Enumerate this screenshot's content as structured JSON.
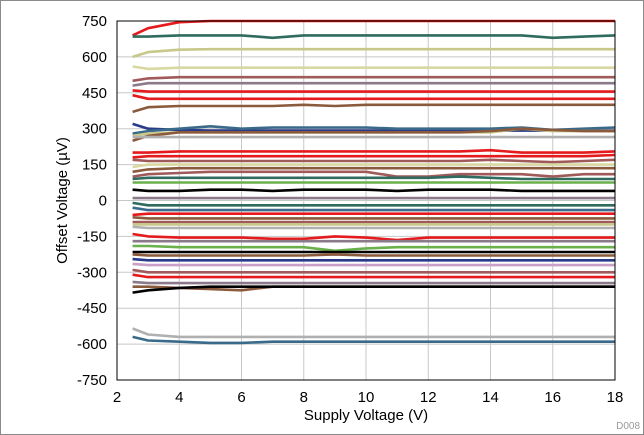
{
  "chart_data": {
    "type": "line",
    "title": "",
    "xlabel": "Supply Voltage (V)",
    "ylabel": "Offset Voltage (µV)",
    "figure_code": "D008",
    "xlim": [
      2,
      18
    ],
    "ylim": [
      -750,
      750
    ],
    "x_ticks": [
      "2",
      "4",
      "6",
      "8",
      "10",
      "12",
      "14",
      "16",
      "18"
    ],
    "y_ticks": [
      "750",
      "600",
      "450",
      "300",
      "150",
      "0",
      "-150",
      "-300",
      "-450",
      "-600",
      "-750"
    ],
    "grid": true,
    "legend": "none",
    "x": [
      2.5,
      3,
      4,
      5,
      6,
      7,
      8,
      9,
      10,
      11,
      12,
      13,
      14,
      15,
      16,
      17,
      18
    ],
    "series": [
      {
        "color": "#e41a1c",
        "values": [
          690,
          720,
          745,
          750,
          750,
          750,
          750,
          750,
          750,
          750,
          750,
          750,
          750,
          750,
          750,
          750,
          750
        ]
      },
      {
        "color": "#2f6b5e",
        "values": [
          685,
          685,
          690,
          690,
          690,
          680,
          690,
          690,
          690,
          690,
          690,
          690,
          690,
          690,
          680,
          685,
          690
        ]
      },
      {
        "color": "#c8c88a",
        "values": [
          600,
          620,
          630,
          632,
          632,
          632,
          632,
          632,
          632,
          632,
          632,
          632,
          632,
          632,
          632,
          632,
          632
        ]
      },
      {
        "color": "#d8d8a0",
        "values": [
          560,
          550,
          555,
          555,
          555,
          555,
          555,
          555,
          555,
          555,
          555,
          555,
          555,
          555,
          555,
          555,
          555
        ]
      },
      {
        "color": "#a05a5a",
        "values": [
          500,
          510,
          515,
          515,
          515,
          515,
          515,
          515,
          515,
          515,
          515,
          515,
          515,
          515,
          515,
          515,
          515
        ]
      },
      {
        "color": "#8a7a8a",
        "values": [
          480,
          490,
          490,
          490,
          490,
          490,
          490,
          490,
          490,
          490,
          490,
          490,
          490,
          490,
          490,
          490,
          490
        ]
      },
      {
        "color": "#e41a1c",
        "values": [
          460,
          455,
          455,
          455,
          455,
          455,
          455,
          455,
          455,
          455,
          455,
          455,
          455,
          455,
          455,
          455,
          455
        ]
      },
      {
        "color": "#e41a1c",
        "values": [
          440,
          425,
          425,
          425,
          425,
          425,
          425,
          425,
          425,
          425,
          425,
          425,
          425,
          425,
          425,
          425,
          425
        ]
      },
      {
        "color": "#8b5a3c",
        "values": [
          370,
          390,
          395,
          395,
          395,
          395,
          400,
          395,
          400,
          400,
          400,
          400,
          400,
          400,
          400,
          400,
          400
        ]
      },
      {
        "color": "#2a3a8a",
        "values": [
          320,
          300,
          295,
          292,
          292,
          292,
          292,
          292,
          292,
          292,
          292,
          292,
          292,
          292,
          292,
          292,
          292
        ]
      },
      {
        "color": "#3a6a8a",
        "values": [
          280,
          290,
          300,
          310,
          300,
          305,
          305,
          305,
          305,
          300,
          300,
          300,
          300,
          305,
          295,
          300,
          305
        ]
      },
      {
        "color": "#c8c88a",
        "values": [
          270,
          280,
          285,
          285,
          285,
          285,
          285,
          285,
          285,
          285,
          285,
          285,
          285,
          300,
          290,
          290,
          290
        ]
      },
      {
        "color": "#8b5a3c",
        "values": [
          250,
          270,
          285,
          285,
          285,
          285,
          285,
          285,
          285,
          285,
          285,
          285,
          290,
          300,
          295,
          290,
          290
        ]
      },
      {
        "color": "#b0b0b0",
        "values": [
          265,
          265,
          265,
          265,
          265,
          265,
          265,
          265,
          265,
          265,
          265,
          265,
          265,
          265,
          265,
          265,
          265
        ]
      },
      {
        "color": "#e41a1c",
        "values": [
          200,
          200,
          205,
          205,
          205,
          205,
          205,
          205,
          205,
          205,
          205,
          205,
          210,
          200,
          200,
          200,
          205
        ]
      },
      {
        "color": "#e41a1c",
        "values": [
          180,
          185,
          185,
          185,
          185,
          185,
          185,
          185,
          185,
          185,
          185,
          185,
          185,
          185,
          185,
          185,
          190
        ]
      },
      {
        "color": "#a05a5a",
        "values": [
          170,
          165,
          165,
          165,
          165,
          165,
          165,
          165,
          165,
          165,
          165,
          165,
          170,
          165,
          160,
          165,
          170
        ]
      },
      {
        "color": "#d8d8a0",
        "values": [
          140,
          150,
          150,
          150,
          150,
          150,
          150,
          150,
          150,
          150,
          150,
          150,
          150,
          150,
          150,
          150,
          150
        ]
      },
      {
        "color": "#8b5a3c",
        "values": [
          120,
          130,
          135,
          135,
          135,
          135,
          135,
          135,
          135,
          135,
          135,
          135,
          135,
          135,
          135,
          135,
          135
        ]
      },
      {
        "color": "#a05a5a",
        "values": [
          100,
          110,
          115,
          120,
          120,
          120,
          120,
          120,
          120,
          100,
          100,
          110,
          110,
          110,
          100,
          110,
          110
        ]
      },
      {
        "color": "#2f6b5e",
        "values": [
          90,
          95,
          95,
          95,
          95,
          95,
          95,
          95,
          95,
          95,
          95,
          100,
          95,
          90,
          90,
          90,
          90
        ]
      },
      {
        "color": "#6ab04c",
        "values": [
          75,
          75,
          75,
          75,
          75,
          75,
          75,
          75,
          75,
          75,
          75,
          75,
          75,
          75,
          75,
          75,
          75
        ]
      },
      {
        "color": "#000000",
        "values": [
          45,
          40,
          40,
          45,
          45,
          40,
          45,
          45,
          45,
          40,
          45,
          45,
          45,
          40,
          40,
          40,
          40
        ]
      },
      {
        "color": "#8a7a8a",
        "values": [
          10,
          10,
          10,
          10,
          10,
          10,
          10,
          10,
          10,
          10,
          10,
          10,
          10,
          10,
          10,
          10,
          10
        ]
      },
      {
        "color": "#2f6b5e",
        "values": [
          -10,
          -20,
          -20,
          -20,
          -20,
          -20,
          -20,
          -20,
          -20,
          -20,
          -20,
          -20,
          -20,
          -20,
          -20,
          -20,
          -20
        ]
      },
      {
        "color": "#3a6a8a",
        "values": [
          -30,
          -40,
          -40,
          -40,
          -40,
          -40,
          -40,
          -40,
          -40,
          -40,
          -40,
          -40,
          -40,
          -40,
          -40,
          -40,
          -40
        ]
      },
      {
        "color": "#e41a1c",
        "values": [
          -60,
          -55,
          -55,
          -55,
          -55,
          -55,
          -55,
          -55,
          -55,
          -55,
          -55,
          -55,
          -55,
          -55,
          -55,
          -55,
          -55
        ]
      },
      {
        "color": "#8b5a3c",
        "values": [
          -70,
          -75,
          -75,
          -75,
          -75,
          -75,
          -75,
          -75,
          -75,
          -75,
          -75,
          -75,
          -75,
          -75,
          -75,
          -75,
          -75
        ]
      },
      {
        "color": "#a05a5a",
        "values": [
          -90,
          -90,
          -90,
          -90,
          -90,
          -90,
          -90,
          -90,
          -90,
          -90,
          -90,
          -90,
          -90,
          -90,
          -90,
          -90,
          -90
        ]
      },
      {
        "color": "#c8c88a",
        "values": [
          -100,
          -100,
          -100,
          -100,
          -100,
          -100,
          -100,
          -100,
          -100,
          -100,
          -100,
          -100,
          -100,
          -100,
          -100,
          -100,
          -100
        ]
      },
      {
        "color": "#b0b0b0",
        "values": [
          -110,
          -115,
          -115,
          -115,
          -115,
          -115,
          -115,
          -115,
          -115,
          -115,
          -115,
          -115,
          -115,
          -115,
          -115,
          -115,
          -115
        ]
      },
      {
        "color": "#e41a1c",
        "values": [
          -140,
          -150,
          -155,
          -155,
          -155,
          -160,
          -160,
          -150,
          -155,
          -165,
          -155,
          -155,
          -155,
          -155,
          -155,
          -155,
          -155
        ]
      },
      {
        "color": "#8a7a8a",
        "values": [
          -170,
          -170,
          -170,
          -170,
          -170,
          -170,
          -170,
          -170,
          -170,
          -170,
          -170,
          -170,
          -170,
          -170,
          -170,
          -170,
          -170
        ]
      },
      {
        "color": "#6ab04c",
        "values": [
          -190,
          -190,
          -195,
          -195,
          -195,
          -195,
          -195,
          -210,
          -200,
          -195,
          -195,
          -195,
          -195,
          -195,
          -195,
          -195,
          -195
        ]
      },
      {
        "color": "#000000",
        "values": [
          -215,
          -215,
          -215,
          -215,
          -215,
          -215,
          -215,
          -215,
          -215,
          -215,
          -215,
          -215,
          -215,
          -215,
          -215,
          -215,
          -215
        ]
      },
      {
        "color": "#8b5a3c",
        "values": [
          -225,
          -230,
          -230,
          -230,
          -230,
          -230,
          -230,
          -225,
          -230,
          -230,
          -230,
          -230,
          -230,
          -230,
          -230,
          -230,
          -230
        ]
      },
      {
        "color": "#2a3a8a",
        "values": [
          -245,
          -250,
          -250,
          -250,
          -250,
          -250,
          -250,
          -250,
          -250,
          -250,
          -250,
          -250,
          -250,
          -250,
          -250,
          -250,
          -250
        ]
      },
      {
        "color": "#c8a0c8",
        "values": [
          -265,
          -270,
          -270,
          -270,
          -270,
          -270,
          -270,
          -270,
          -270,
          -270,
          -270,
          -270,
          -270,
          -270,
          -270,
          -270,
          -270
        ]
      },
      {
        "color": "#a05a5a",
        "values": [
          -290,
          -300,
          -300,
          -300,
          -300,
          -300,
          -300,
          -300,
          -300,
          -300,
          -300,
          -300,
          -300,
          -300,
          -300,
          -300,
          -300
        ]
      },
      {
        "color": "#e41a1c",
        "values": [
          -310,
          -320,
          -320,
          -320,
          -320,
          -320,
          -320,
          -320,
          -320,
          -320,
          -320,
          -320,
          -320,
          -320,
          -320,
          -320,
          -320
        ]
      },
      {
        "color": "#8a7a8a",
        "values": [
          -340,
          -345,
          -345,
          -345,
          -345,
          -345,
          -345,
          -345,
          -345,
          -345,
          -345,
          -345,
          -345,
          -345,
          -345,
          -345,
          -345
        ]
      },
      {
        "color": "#8b5a3c",
        "values": [
          -360,
          -360,
          -365,
          -370,
          -375,
          -360,
          -360,
          -360,
          -360,
          -360,
          -360,
          -360,
          -360,
          -360,
          -360,
          -360,
          -360
        ]
      },
      {
        "color": "#000000",
        "values": [
          -385,
          -375,
          -365,
          -360,
          -360,
          -360,
          -360,
          -360,
          -360,
          -360,
          -360,
          -360,
          -360,
          -360,
          -360,
          -360,
          -360
        ]
      },
      {
        "color": "#b0b0b0",
        "values": [
          -535,
          -560,
          -570,
          -570,
          -570,
          -570,
          -570,
          -570,
          -570,
          -570,
          -570,
          -570,
          -570,
          -570,
          -570,
          -570,
          -570
        ]
      },
      {
        "color": "#3a6a8a",
        "values": [
          -570,
          -585,
          -590,
          -595,
          -595,
          -590,
          -590,
          -590,
          -590,
          -590,
          -590,
          -590,
          -590,
          -590,
          -590,
          -590,
          -590
        ]
      }
    ]
  }
}
